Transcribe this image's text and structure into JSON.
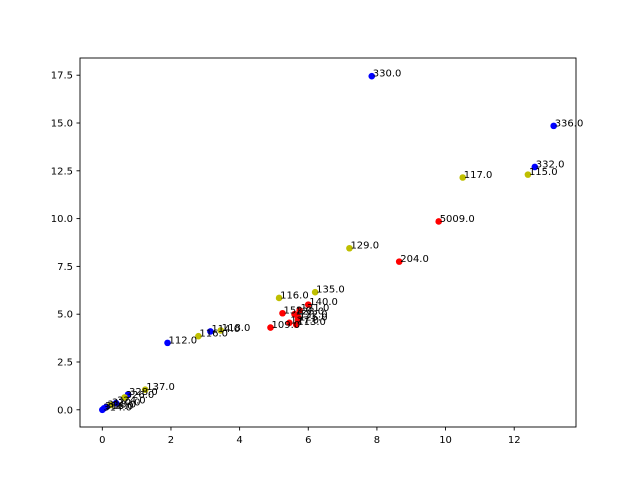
{
  "chart_data": {
    "type": "scatter",
    "title": "",
    "xlabel": "",
    "ylabel": "",
    "xlim": [
      -0.65,
      13.8
    ],
    "ylim": [
      -0.9,
      18.4
    ],
    "grid": false,
    "xticks": [
      0,
      2,
      4,
      6,
      8,
      10,
      12
    ],
    "xtick_labels": [
      "0",
      "2",
      "4",
      "6",
      "8",
      "10",
      "12"
    ],
    "yticks": [
      0.0,
      2.5,
      5.0,
      7.5,
      10.0,
      12.5,
      15.0,
      17.5
    ],
    "ytick_labels": [
      "0.0",
      "2.5",
      "5.0",
      "7.5",
      "10.0",
      "12.5",
      "15.0",
      "17.5"
    ],
    "colors": {
      "blue": "#0000ff",
      "red": "#ff0000",
      "yellow": "#bfbf00",
      "axis": "#000000"
    },
    "points": [
      {
        "x": 7.85,
        "y": 17.45,
        "color": "blue",
        "label": "330.0"
      },
      {
        "x": 13.15,
        "y": 14.85,
        "color": "blue",
        "label": "336.0"
      },
      {
        "x": 12.6,
        "y": 12.7,
        "color": "blue",
        "label": "332.0"
      },
      {
        "x": 12.4,
        "y": 12.3,
        "color": "yellow",
        "label": "115.0"
      },
      {
        "x": 10.5,
        "y": 12.15,
        "color": "yellow",
        "label": "117.0"
      },
      {
        "x": 9.8,
        "y": 9.85,
        "color": "red",
        "label": "5009.0"
      },
      {
        "x": 7.2,
        "y": 8.45,
        "color": "yellow",
        "label": "129.0"
      },
      {
        "x": 8.65,
        "y": 7.75,
        "color": "red",
        "label": "204.0"
      },
      {
        "x": 6.2,
        "y": 6.15,
        "color": "yellow",
        "label": "135.0"
      },
      {
        "x": 5.15,
        "y": 5.85,
        "color": "yellow",
        "label": "116.0"
      },
      {
        "x": 6.0,
        "y": 5.5,
        "color": "red",
        "label": "140.0"
      },
      {
        "x": 5.75,
        "y": 5.2,
        "color": "red",
        "label": "121.0"
      },
      {
        "x": 5.25,
        "y": 5.05,
        "color": "red",
        "label": "152.0"
      },
      {
        "x": 5.6,
        "y": 5.0,
        "color": "red",
        "label": "123.0"
      },
      {
        "x": 5.7,
        "y": 4.85,
        "color": "red",
        "label": "122.0"
      },
      {
        "x": 5.7,
        "y": 4.7,
        "color": "red",
        "label": "125.0"
      },
      {
        "x": 5.45,
        "y": 4.55,
        "color": "red",
        "label": "127.0"
      },
      {
        "x": 5.65,
        "y": 4.45,
        "color": "red",
        "label": "113.0"
      },
      {
        "x": 4.9,
        "y": 4.3,
        "color": "red",
        "label": "109.0"
      },
      {
        "x": 3.45,
        "y": 4.15,
        "color": "yellow",
        "label": "118.0"
      },
      {
        "x": 3.15,
        "y": 4.1,
        "color": "blue",
        "label": "114.0"
      },
      {
        "x": 2.8,
        "y": 3.85,
        "color": "yellow",
        "label": "116.0"
      },
      {
        "x": 1.9,
        "y": 3.5,
        "color": "blue",
        "label": "112.0"
      },
      {
        "x": 1.25,
        "y": 1.05,
        "color": "yellow",
        "label": "137.0"
      },
      {
        "x": 0.75,
        "y": 0.8,
        "color": "blue",
        "label": "328.0"
      },
      {
        "x": 0.65,
        "y": 0.65,
        "color": "yellow",
        "label": "326.0"
      },
      {
        "x": 0.4,
        "y": 0.35,
        "color": "blue",
        "label": "324.0"
      },
      {
        "x": 0.25,
        "y": 0.25,
        "color": "yellow",
        "label": "320.0"
      },
      {
        "x": 0.12,
        "y": 0.15,
        "color": "blue",
        "label": "318.0"
      },
      {
        "x": 0.05,
        "y": 0.08,
        "color": "blue",
        "label": "316.0"
      },
      {
        "x": 0.0,
        "y": 0.0,
        "color": "blue",
        "label": "314.0"
      }
    ]
  }
}
